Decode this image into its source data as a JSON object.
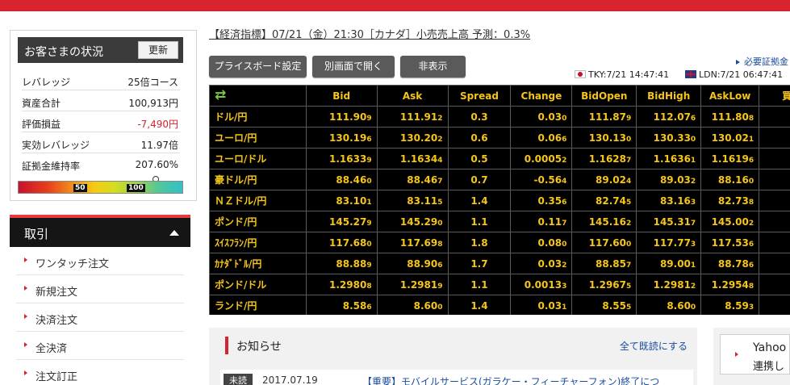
{
  "status": {
    "title": "お客さまの状況",
    "refresh_label": "更新",
    "rows": [
      {
        "label": "レバレッジ",
        "value": "25倍コース"
      },
      {
        "label": "資産合計",
        "value": "100,913円"
      },
      {
        "label": "評価損益",
        "value": "-7,490円"
      },
      {
        "label": "実効レバレッジ",
        "value": "11.97倍"
      },
      {
        "label": "証拠金維持率",
        "value": "207.60%"
      }
    ],
    "gauge": {
      "mark_low": "50",
      "mark_high": "100",
      "level_percent": 207.6
    }
  },
  "trade_menu": {
    "title": "取引",
    "items": [
      "ワンタッチ注文",
      "新規注文",
      "決済注文",
      "全決済",
      "注文訂正"
    ]
  },
  "ticker": "【経済指標】07/21（金）21:30［カナダ］小売売上高 予測：0.3%",
  "toolbar": {
    "board_settings": "プライスボード設定",
    "open_window": "別画面で開く",
    "hide": "非表示"
  },
  "margin_link": "必要証拠金",
  "clocks": {
    "tky": "TKY:7/21 14:47:41",
    "ldn": "LDN:7/21 06:47:41"
  },
  "board": {
    "headers": [
      "",
      "Bid",
      "Ask",
      "Spread",
      "Change",
      "BidOpen",
      "BidHigh",
      "AskLow",
      "買S"
    ],
    "rows": [
      {
        "pair": "ドル/円",
        "bid": [
          "111.90",
          "9"
        ],
        "ask": [
          "111.91",
          "2"
        ],
        "spread": "0.3",
        "change": [
          "0.03",
          "0"
        ],
        "open": [
          "111.87",
          "9"
        ],
        "high": [
          "112.07",
          "6"
        ],
        "low": [
          "111.80",
          "8"
        ]
      },
      {
        "pair": "ユーロ/円",
        "bid": [
          "130.19",
          "6"
        ],
        "ask": [
          "130.20",
          "2"
        ],
        "spread": "0.6",
        "change": [
          "0.06",
          "6"
        ],
        "open": [
          "130.13",
          "0"
        ],
        "high": [
          "130.33",
          "0"
        ],
        "low": [
          "130.02",
          "1"
        ]
      },
      {
        "pair": "ユーロ/ドル",
        "bid": [
          "1.1633",
          "9"
        ],
        "ask": [
          "1.1634",
          "4"
        ],
        "spread": "0.5",
        "change": [
          "0.0005",
          "2"
        ],
        "open": [
          "1.1628",
          "7"
        ],
        "high": [
          "1.1636",
          "1"
        ],
        "low": [
          "1.1619",
          "6"
        ]
      },
      {
        "pair": "豪ドル/円",
        "bid": [
          "88.46",
          "0"
        ],
        "ask": [
          "88.46",
          "7"
        ],
        "spread": "0.7",
        "change": [
          "-0.56",
          "4"
        ],
        "open": [
          "89.02",
          "4"
        ],
        "high": [
          "89.03",
          "2"
        ],
        "low": [
          "88.16",
          "0"
        ]
      },
      {
        "pair": "ＮＺドル/円",
        "bid": [
          "83.10",
          "1"
        ],
        "ask": [
          "83.11",
          "5"
        ],
        "spread": "1.4",
        "change": [
          "0.35",
          "6"
        ],
        "open": [
          "82.74",
          "5"
        ],
        "high": [
          "83.16",
          "3"
        ],
        "low": [
          "82.73",
          "8"
        ]
      },
      {
        "pair": "ポンド/円",
        "bid": [
          "145.27",
          "9"
        ],
        "ask": [
          "145.29",
          "0"
        ],
        "spread": "1.1",
        "change": [
          "0.11",
          "7"
        ],
        "open": [
          "145.16",
          "2"
        ],
        "high": [
          "145.31",
          "7"
        ],
        "low": [
          "145.00",
          "2"
        ]
      },
      {
        "pair": "ｽｲｽﾌﾗﾝ/円",
        "bid": [
          "117.68",
          "0"
        ],
        "ask": [
          "117.69",
          "8"
        ],
        "spread": "1.8",
        "change": [
          "0.08",
          "0"
        ],
        "open": [
          "117.60",
          "0"
        ],
        "high": [
          "117.77",
          "3"
        ],
        "low": [
          "117.53",
          "6"
        ]
      },
      {
        "pair": "ｶﾅﾀﾞﾄﾞﾙ/円",
        "bid": [
          "88.88",
          "9"
        ],
        "ask": [
          "88.90",
          "6"
        ],
        "spread": "1.7",
        "change": [
          "0.03",
          "2"
        ],
        "open": [
          "88.85",
          "7"
        ],
        "high": [
          "89.00",
          "1"
        ],
        "low": [
          "88.78",
          "6"
        ]
      },
      {
        "pair": "ポンド/ドル",
        "bid": [
          "1.2980",
          "8"
        ],
        "ask": [
          "1.2981",
          "9"
        ],
        "spread": "1.1",
        "change": [
          "0.0013",
          "3"
        ],
        "open": [
          "1.2967",
          "5"
        ],
        "high": [
          "1.2981",
          "2"
        ],
        "low": [
          "1.2954",
          "8"
        ]
      },
      {
        "pair": "ランド/円",
        "bid": [
          "8.58",
          "6"
        ],
        "ask": [
          "8.60",
          "0"
        ],
        "spread": "1.4",
        "change": [
          "0.03",
          "1"
        ],
        "open": [
          "8.55",
          "5"
        ],
        "high": [
          "8.60",
          "0"
        ],
        "low": [
          "8.59",
          "3"
        ]
      }
    ]
  },
  "notice": {
    "title": "お知らせ",
    "read_all": "全て既読にする",
    "items": [
      {
        "badge": "未読",
        "date": "2017.07.19",
        "headline": "【重要】モバイルサービス(ガラケー・フィーチャーフォン)終了につ"
      }
    ]
  },
  "yahoo": {
    "line1": "Yahoo",
    "line2": "連携し"
  },
  "colors": {
    "accent_red": "#d8232f",
    "board_text": "#f5c518",
    "board_bg": "#000000",
    "negative": "#d8232f",
    "link": "#1a4c9c"
  }
}
